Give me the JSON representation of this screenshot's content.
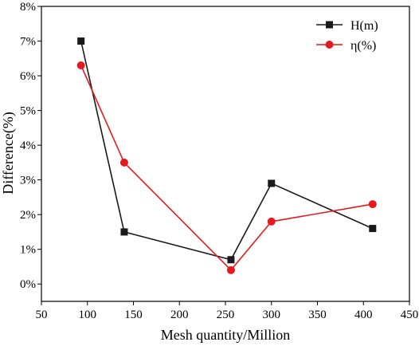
{
  "chart_data": {
    "type": "line",
    "title": "",
    "xlabel": "Mesh quantity/Million",
    "ylabel": "Difference(%)",
    "xlim": [
      50,
      450
    ],
    "ylim": [
      -0.5,
      8
    ],
    "xticks": [
      50,
      100,
      150,
      200,
      250,
      300,
      350,
      400,
      450
    ],
    "yticks": [
      0,
      1,
      2,
      3,
      4,
      5,
      6,
      7,
      8
    ],
    "x_tick_labels": [
      "50",
      "100",
      "150",
      "200",
      "250",
      "300",
      "350",
      "400",
      "450"
    ],
    "y_tick_labels": [
      "0%",
      "1%",
      "2%",
      "3%",
      "4%",
      "5%",
      "6%",
      "7%",
      "8%"
    ],
    "grid": false,
    "legend_position": "top-right",
    "series": [
      {
        "name": "H(m)",
        "color": "#1a1a1a",
        "marker": "square",
        "points": [
          {
            "x": 93,
            "y": 7.0
          },
          {
            "x": 140,
            "y": 1.5
          },
          {
            "x": 256,
            "y": 0.7
          },
          {
            "x": 300,
            "y": 2.9
          },
          {
            "x": 410,
            "y": 1.6
          }
        ]
      },
      {
        "name": "η(%)",
        "color": "#e8191d",
        "marker": "circle",
        "points": [
          {
            "x": 93,
            "y": 6.3
          },
          {
            "x": 140,
            "y": 3.5
          },
          {
            "x": 256,
            "y": 0.4
          },
          {
            "x": 300,
            "y": 1.8
          },
          {
            "x": 410,
            "y": 2.3
          }
        ]
      }
    ]
  }
}
